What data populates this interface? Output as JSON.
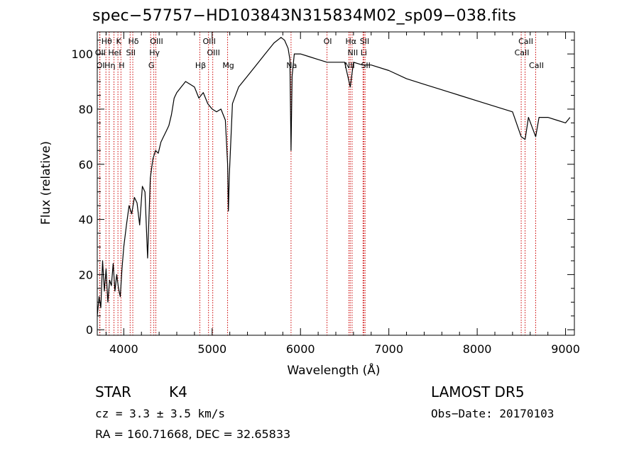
{
  "title": "spec−57757−HD103843N315834M02_sp09−038.fits",
  "footer": {
    "object_class": "STAR",
    "subclass": "K4",
    "survey": "LAMOST DR5",
    "cz": "cz = 3.3 ± 3.5 km/s",
    "obs_date": "Obs−Date: 20170103",
    "coords": "RA = 160.71668, DEC =  32.65833"
  },
  "chart_data": {
    "type": "line",
    "title": "spec−57757−HD103843N315834M02_sp09−038.fits",
    "xlabel": "Wavelength (Å)",
    "ylabel": "Flux (relative)",
    "xlim": [
      3700,
      9100
    ],
    "ylim": [
      -2,
      108
    ],
    "x_ticks": [
      4000,
      5000,
      6000,
      7000,
      8000,
      9000
    ],
    "y_ticks": [
      0,
      20,
      40,
      60,
      80,
      100
    ],
    "grid": false,
    "line_color": "#000000",
    "marker_color": "#cc0000",
    "series": [
      {
        "x": [
          3700,
          3720,
          3740,
          3760,
          3780,
          3800,
          3820,
          3840,
          3860,
          3880,
          3900,
          3920,
          3940,
          3960,
          3980,
          4000,
          4030,
          4060,
          4090,
          4120,
          4150,
          4180,
          4210,
          4240,
          4270,
          4300,
          4330,
          4360,
          4390,
          4420,
          4450,
          4480,
          4510,
          4540,
          4570,
          4600,
          4650,
          4700,
          4750,
          4800,
          4850,
          4900,
          4950,
          5000,
          5050,
          5100,
          5150,
          5175,
          5184,
          5195,
          5230,
          5300,
          5400,
          5500,
          5600,
          5700,
          5780,
          5820,
          5860,
          5880,
          5893,
          5905,
          5930,
          6000,
          6100,
          6200,
          6300,
          6400,
          6500,
          6563,
          6600,
          6700,
          6800,
          7000,
          7200,
          7400,
          7600,
          7800,
          8000,
          8200,
          8400,
          8498,
          8542,
          8580,
          8662,
          8700,
          8800,
          8900,
          9000,
          9050
        ],
        "y": [
          5,
          12,
          8,
          25,
          14,
          22,
          10,
          18,
          16,
          24,
          14,
          20,
          15,
          12,
          22,
          30,
          38,
          45,
          42,
          48,
          46,
          38,
          52,
          50,
          26,
          55,
          62,
          65,
          64,
          68,
          70,
          72,
          74,
          78,
          84,
          86,
          88,
          90,
          89,
          88,
          84,
          86,
          82,
          80,
          79,
          80,
          76,
          60,
          43,
          56,
          82,
          88,
          92,
          96,
          100,
          104,
          106,
          105,
          102,
          98,
          65,
          92,
          100,
          100,
          99,
          98,
          97,
          97,
          97,
          88,
          97,
          96,
          96,
          94,
          91,
          89,
          87,
          85,
          83,
          81,
          79,
          70,
          69,
          77,
          70,
          77,
          77,
          76,
          75,
          77
        ]
      }
    ],
    "line_markers": [
      {
        "label": "Hθ",
        "wavelength": 3798,
        "row": 0
      },
      {
        "label": "K",
        "wavelength": 3934,
        "row": 0
      },
      {
        "label": "Hδ",
        "wavelength": 4102,
        "row": 0
      },
      {
        "label": "OIII",
        "wavelength": 4363,
        "row": 0
      },
      {
        "label": "OIII",
        "wavelength": 4959,
        "row": 0
      },
      {
        "label": "OI",
        "wavelength": 6300,
        "row": 0
      },
      {
        "label": "Hα",
        "wavelength": 6563,
        "row": 0
      },
      {
        "label": "SII",
        "wavelength": 6717,
        "row": 0
      },
      {
        "label": "CaII",
        "wavelength": 8542,
        "row": 0
      },
      {
        "label": "OII",
        "wavelength": 3727,
        "row": 1
      },
      {
        "label": "HeI",
        "wavelength": 3889,
        "row": 1
      },
      {
        "label": "SII",
        "wavelength": 4072,
        "row": 1
      },
      {
        "label": "Hγ",
        "wavelength": 4340,
        "row": 1
      },
      {
        "label": "OIII",
        "wavelength": 5007,
        "row": 1
      },
      {
        "label": "NII",
        "wavelength": 6584,
        "row": 1
      },
      {
        "label": "Li",
        "wavelength": 6708,
        "row": 1
      },
      {
        "label": "CaII",
        "wavelength": 8498,
        "row": 1
      },
      {
        "label": "OI",
        "wavelength": 3730,
        "row": 2
      },
      {
        "label": "Hη",
        "wavelength": 3835,
        "row": 2
      },
      {
        "label": "H",
        "wavelength": 3968,
        "row": 2
      },
      {
        "label": "G",
        "wavelength": 4304,
        "row": 2
      },
      {
        "label": "Hβ",
        "wavelength": 4861,
        "row": 2
      },
      {
        "label": "Mg",
        "wavelength": 5175,
        "row": 2
      },
      {
        "label": "Na",
        "wavelength": 5893,
        "row": 2
      },
      {
        "label": "NII",
        "wavelength": 6548,
        "row": 2
      },
      {
        "label": "SII",
        "wavelength": 6731,
        "row": 2
      },
      {
        "label": "CaII",
        "wavelength": 8662,
        "row": 2
      }
    ]
  }
}
